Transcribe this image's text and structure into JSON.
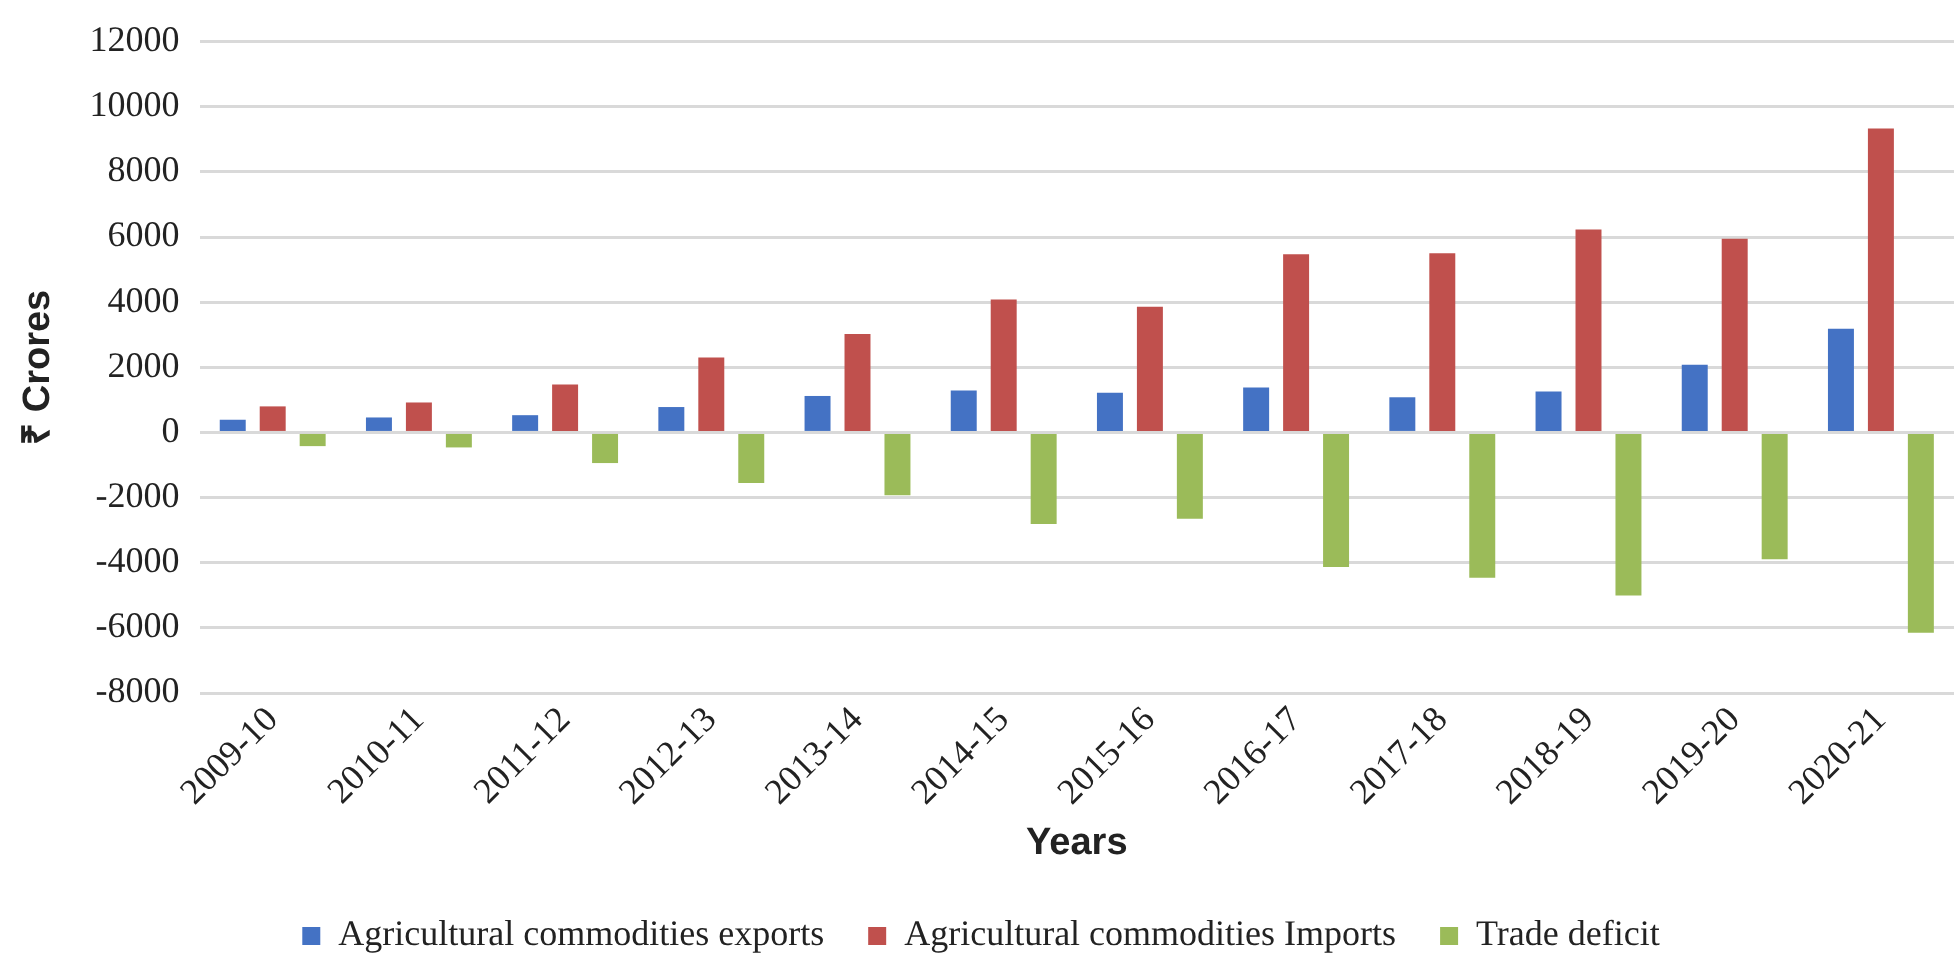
{
  "chart_data": {
    "type": "bar",
    "xlabel": "Years",
    "ylabel": "₹ Crores",
    "categories": [
      "2009-10",
      "2010-11",
      "2011-12",
      "2012-13",
      "2013-14",
      "2014-15",
      "2015-16",
      "2016-17",
      "2017-18",
      "2018-19",
      "2019-20",
      "2020-21"
    ],
    "series": [
      {
        "name": "Agricultural commodities exports",
        "color": "#4472c4",
        "values": [
          390,
          460,
          530,
          780,
          1120,
          1290,
          1220,
          1380,
          1080,
          1260,
          2080,
          3180
        ]
      },
      {
        "name": "Agricultural commodities Imports",
        "color": "#c0504d",
        "values": [
          800,
          920,
          1470,
          2300,
          3020,
          4080,
          3860,
          5470,
          5500,
          6230,
          5950,
          9330
        ]
      },
      {
        "name": "Trade deficit",
        "color": "#9bbb59",
        "values": [
          -420,
          -460,
          -940,
          -1550,
          -1930,
          -2810,
          -2650,
          -4130,
          -4460,
          -5010,
          -3890,
          -6150
        ]
      }
    ],
    "ylim": [
      -8000,
      12000
    ],
    "yticks": [
      -8000,
      -6000,
      -4000,
      -2000,
      0,
      2000,
      4000,
      6000,
      8000,
      10000,
      12000
    ],
    "grid": "y",
    "legend": "bottom"
  }
}
